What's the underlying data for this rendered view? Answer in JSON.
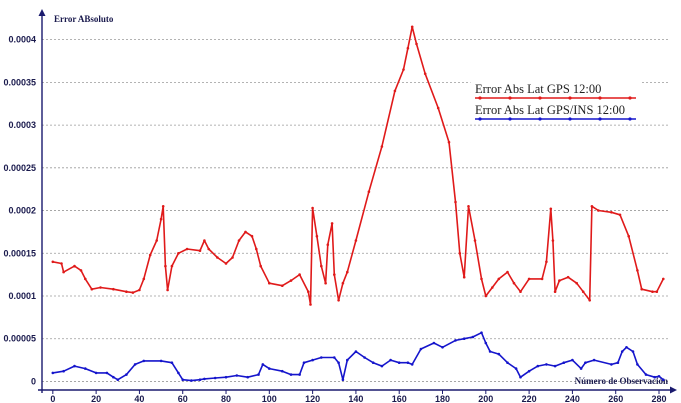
{
  "chart_data": {
    "type": "line",
    "title": "",
    "ylabel": "Error ABsoluto",
    "xlabel": "Número de Observación",
    "xlim": [
      -5,
      286
    ],
    "ylim": [
      -1e-05,
      0.00043
    ],
    "x_ticks": [
      0,
      20,
      40,
      60,
      80,
      100,
      120,
      140,
      160,
      180,
      200,
      220,
      240,
      260,
      280
    ],
    "x_tick_labels": [
      "0",
      "20",
      "40",
      "60",
      "80",
      "100",
      "120",
      "140",
      "160",
      "180",
      "200",
      "220",
      "240",
      "260",
      "280"
    ],
    "y_ticks": [
      0,
      5e-05,
      0.0001,
      0.00015,
      0.0002,
      0.00025,
      0.0003,
      0.00035,
      0.0004
    ],
    "y_tick_labels": [
      "0",
      "0.00005",
      "0.0001",
      "0.00015",
      "0.0002",
      "0.00025",
      "0.0003",
      "0.00035",
      "0.0004"
    ],
    "grid": true,
    "legend_position": "top-right",
    "series": [
      {
        "name": "Error Abs Lat GPS 12:00",
        "color": "#e01a1a",
        "points": [
          [
            0,
            0.00014
          ],
          [
            4,
            0.000138
          ],
          [
            5,
            0.000128
          ],
          [
            10,
            0.000135
          ],
          [
            13,
            0.00013
          ],
          [
            15,
            0.00012
          ],
          [
            18,
            0.000108
          ],
          [
            22,
            0.00011
          ],
          [
            28,
            0.000108
          ],
          [
            34,
            0.000105
          ],
          [
            37,
            0.000104
          ],
          [
            40,
            0.000107
          ],
          [
            42,
            0.00012
          ],
          [
            45,
            0.000148
          ],
          [
            48,
            0.000165
          ],
          [
            50,
            0.00019
          ],
          [
            51,
            0.000205
          ],
          [
            52,
            0.000135
          ],
          [
            53,
            0.000107
          ],
          [
            55,
            0.000135
          ],
          [
            58,
            0.00015
          ],
          [
            62,
            0.000155
          ],
          [
            68,
            0.000153
          ],
          [
            70,
            0.000165
          ],
          [
            72,
            0.000155
          ],
          [
            76,
            0.000145
          ],
          [
            80,
            0.000138
          ],
          [
            83,
            0.000145
          ],
          [
            86,
            0.000165
          ],
          [
            89,
            0.000175
          ],
          [
            92,
            0.00017
          ],
          [
            94,
            0.000155
          ],
          [
            96,
            0.000135
          ],
          [
            100,
            0.000115
          ],
          [
            106,
            0.000112
          ],
          [
            110,
            0.000118
          ],
          [
            114,
            0.000125
          ],
          [
            118,
            0.000105
          ],
          [
            119,
            9e-05
          ],
          [
            120,
            0.000203
          ],
          [
            122,
            0.00017
          ],
          [
            124,
            0.000135
          ],
          [
            126,
            0.000115
          ],
          [
            127,
            0.00016
          ],
          [
            129,
            0.000185
          ],
          [
            130,
            0.000125
          ],
          [
            132,
            9.5e-05
          ],
          [
            134,
            0.000115
          ],
          [
            136,
            0.000128
          ],
          [
            140,
            0.000165
          ],
          [
            146,
            0.000222
          ],
          [
            152,
            0.000275
          ],
          [
            158,
            0.00034
          ],
          [
            162,
            0.000365
          ],
          [
            164,
            0.00039
          ],
          [
            166,
            0.000415
          ],
          [
            168,
            0.000395
          ],
          [
            172,
            0.00036
          ],
          [
            178,
            0.00032
          ],
          [
            183,
            0.00028
          ],
          [
            186,
            0.00021
          ],
          [
            188,
            0.00015
          ],
          [
            190,
            0.000122
          ],
          [
            192,
            0.000205
          ],
          [
            195,
            0.000165
          ],
          [
            198,
            0.00012
          ],
          [
            200,
            0.0001
          ],
          [
            203,
            0.00011
          ],
          [
            206,
            0.00012
          ],
          [
            210,
            0.000128
          ],
          [
            213,
            0.000115
          ],
          [
            216,
            0.000105
          ],
          [
            220,
            0.00012
          ],
          [
            226,
            0.00012
          ],
          [
            228,
            0.00014
          ],
          [
            230,
            0.000202
          ],
          [
            231,
            0.000165
          ],
          [
            232,
            0.000105
          ],
          [
            234,
            0.000118
          ],
          [
            238,
            0.000122
          ],
          [
            242,
            0.000115
          ],
          [
            245,
            0.000105
          ],
          [
            248,
            9.5e-05
          ],
          [
            249,
            0.000205
          ],
          [
            252,
            0.0002
          ],
          [
            258,
            0.000198
          ],
          [
            262,
            0.000195
          ],
          [
            266,
            0.00017
          ],
          [
            270,
            0.00013
          ],
          [
            272,
            0.000108
          ],
          [
            277,
            0.000105
          ],
          [
            279,
            0.000105
          ],
          [
            282,
            0.00012
          ]
        ]
      },
      {
        "name": "Error Abs Lat GPS/INS 12:00",
        "color": "#1515cc",
        "points": [
          [
            0,
            1e-05
          ],
          [
            5,
            1.2e-05
          ],
          [
            10,
            1.8e-05
          ],
          [
            15,
            1.5e-05
          ],
          [
            20,
            1e-05
          ],
          [
            25,
            1e-05
          ],
          [
            28,
            5e-06
          ],
          [
            30,
            2e-06
          ],
          [
            34,
            8e-06
          ],
          [
            38,
            2e-05
          ],
          [
            42,
            2.4e-05
          ],
          [
            50,
            2.4e-05
          ],
          [
            55,
            2.2e-05
          ],
          [
            58,
            1e-05
          ],
          [
            60,
            2e-06
          ],
          [
            64,
            1e-06
          ],
          [
            68,
            2e-06
          ],
          [
            70,
            3e-06
          ],
          [
            75,
            4e-06
          ],
          [
            80,
            5e-06
          ],
          [
            85,
            7e-06
          ],
          [
            90,
            5e-06
          ],
          [
            95,
            8e-06
          ],
          [
            97,
            2e-05
          ],
          [
            100,
            1.5e-05
          ],
          [
            106,
            1.2e-05
          ],
          [
            110,
            8e-06
          ],
          [
            114,
            8e-06
          ],
          [
            116,
            2.2e-05
          ],
          [
            120,
            2.5e-05
          ],
          [
            124,
            2.8e-05
          ],
          [
            130,
            2.8e-05
          ],
          [
            132,
            2.2e-05
          ],
          [
            134,
            2e-06
          ],
          [
            136,
            2.5e-05
          ],
          [
            140,
            3.5e-05
          ],
          [
            144,
            2.8e-05
          ],
          [
            148,
            2.2e-05
          ],
          [
            152,
            1.8e-05
          ],
          [
            156,
            2.5e-05
          ],
          [
            160,
            2.2e-05
          ],
          [
            164,
            2.2e-05
          ],
          [
            166,
            2e-05
          ],
          [
            170,
            3.8e-05
          ],
          [
            176,
            4.5e-05
          ],
          [
            180,
            4e-05
          ],
          [
            186,
            4.8e-05
          ],
          [
            190,
            5e-05
          ],
          [
            194,
            5.2e-05
          ],
          [
            198,
            5.7e-05
          ],
          [
            200,
            4.5e-05
          ],
          [
            202,
            3.5e-05
          ],
          [
            206,
            3.2e-05
          ],
          [
            210,
            2.2e-05
          ],
          [
            214,
            1.5e-05
          ],
          [
            216,
            5e-06
          ],
          [
            220,
            1.2e-05
          ],
          [
            224,
            1.8e-05
          ],
          [
            228,
            2e-05
          ],
          [
            232,
            1.8e-05
          ],
          [
            236,
            2.2e-05
          ],
          [
            240,
            2.5e-05
          ],
          [
            244,
            1.5e-05
          ],
          [
            246,
            2.2e-05
          ],
          [
            250,
            2.5e-05
          ],
          [
            258,
            2e-05
          ],
          [
            261,
            2.2e-05
          ],
          [
            263,
            3.5e-05
          ],
          [
            265,
            4e-05
          ],
          [
            268,
            3.5e-05
          ],
          [
            270,
            2e-05
          ],
          [
            274,
            8e-06
          ],
          [
            278,
            5e-06
          ],
          [
            280,
            6e-06
          ],
          [
            282,
            2e-06
          ]
        ]
      }
    ]
  }
}
